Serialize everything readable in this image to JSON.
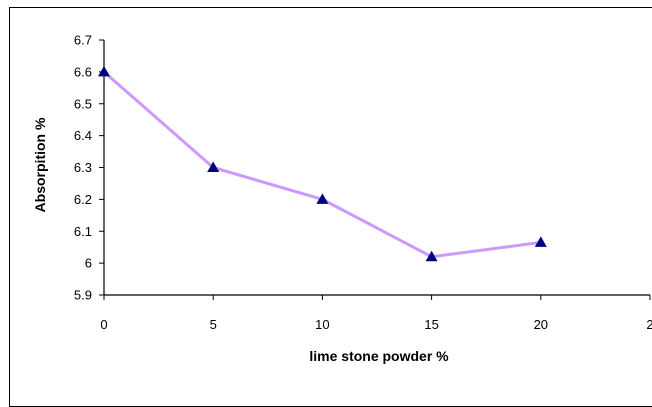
{
  "chart_data": {
    "type": "line",
    "title": "",
    "xlabel": "lime stone powder %",
    "ylabel": "Absorpition %",
    "xlim": [
      0,
      25
    ],
    "ylim": [
      5.9,
      6.7
    ],
    "x_ticks": [
      "0",
      "5",
      "10",
      "15",
      "20",
      "2"
    ],
    "y_ticks": [
      "5.9",
      "6",
      "6.1",
      "6.2",
      "6.3",
      "6.4",
      "6.5",
      "6.6",
      "6.7"
    ],
    "grid": false,
    "legend": "none",
    "series": [
      {
        "color": "#cc99ff",
        "marker": "triangle",
        "marker_color": "#000080",
        "x": [
          0,
          5,
          10,
          15,
          20
        ],
        "y": [
          6.6,
          6.3,
          6.2,
          6.02,
          6.065
        ]
      }
    ]
  }
}
